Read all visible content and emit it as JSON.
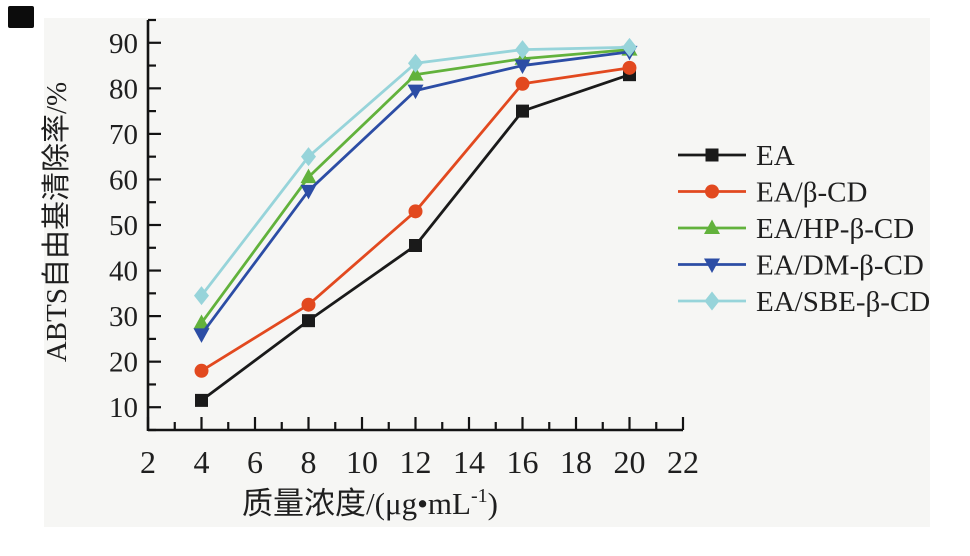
{
  "page": {
    "background_color": "#ffffff",
    "panel_background_color": "#f6f6f4",
    "scan_mark_color": "#0c0c0c"
  },
  "chart_data": {
    "type": "line",
    "x": [
      4,
      8,
      12,
      16,
      20
    ],
    "series": [
      {
        "name": "EA",
        "color": "#1a1a1a",
        "marker": "square",
        "values": [
          11.5,
          29,
          45.5,
          75,
          83
        ]
      },
      {
        "name": "EA/β-CD",
        "color": "#e2491f",
        "marker": "circle",
        "values": [
          18,
          32.5,
          53,
          81,
          84.5
        ]
      },
      {
        "name": "EA/HP-β-CD",
        "color": "#62b23c",
        "marker": "triangle-up",
        "values": [
          28.5,
          60.5,
          83,
          86.5,
          88.5
        ]
      },
      {
        "name": "EA/DM-β-CD",
        "color": "#2c4da5",
        "marker": "triangle-down",
        "values": [
          26,
          57.5,
          79.5,
          85,
          88
        ]
      },
      {
        "name": "EA/SBE-β-CD",
        "color": "#97d4da",
        "marker": "diamond",
        "values": [
          34.5,
          65,
          85.5,
          88.5,
          89
        ]
      }
    ],
    "xlabel": "质量浓度/(μg•mL⁻¹)",
    "xlabel_parts": {
      "main": "质量浓度/(μg•mL",
      "sup": "-1",
      "close": ")"
    },
    "ylabel": "ABTS自由基清除率/%",
    "xlim": [
      2,
      22
    ],
    "ylim": [
      5,
      95
    ],
    "x_tick_labels": [
      "2",
      "4",
      "6",
      "8",
      "10",
      "12",
      "14",
      "16",
      "18",
      "20",
      "22"
    ],
    "x_major_step": 2,
    "x_minor_step": 1,
    "y_tick_labels": [
      "10",
      "20",
      "30",
      "40",
      "50",
      "60",
      "70",
      "80",
      "90"
    ],
    "y_major_step": 10,
    "y_minor_step": 5,
    "grid": false,
    "legend_position": "right-middle",
    "axis_color": "#131313",
    "text_color": "#1f1f1f"
  }
}
